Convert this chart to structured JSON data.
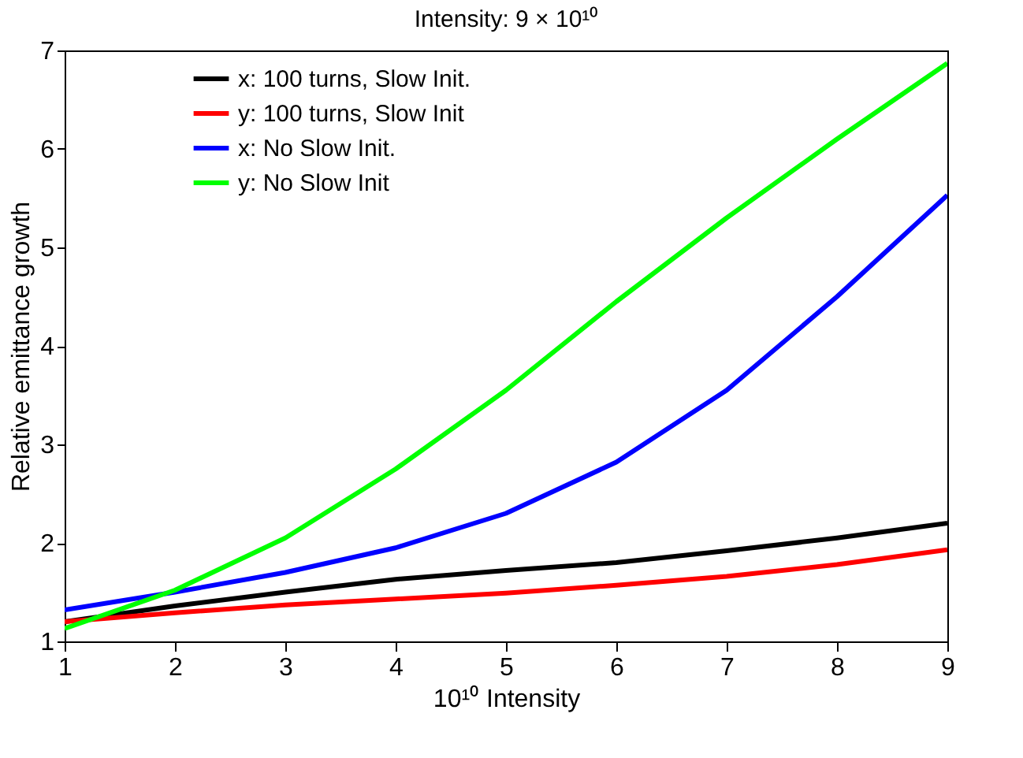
{
  "chart_data": {
    "type": "line",
    "title": "Intensity: 9 × 10¹⁰",
    "xlabel": "10¹⁰  Intensity",
    "ylabel": "Relative emittance growth",
    "x": [
      1,
      2,
      3,
      4,
      5,
      6,
      7,
      8,
      9
    ],
    "series": [
      {
        "name": "x: 100 turns, Slow Init.",
        "color": "#000000",
        "values": [
          1.2,
          1.36,
          1.5,
          1.63,
          1.72,
          1.8,
          1.92,
          2.05,
          2.2
        ]
      },
      {
        "name": "y:  100 turns, Slow Init",
        "color": "#ff0000",
        "values": [
          1.2,
          1.29,
          1.37,
          1.43,
          1.49,
          1.57,
          1.66,
          1.78,
          1.93
        ]
      },
      {
        "name": "x: No Slow Init.",
        "color": "#0000ff",
        "values": [
          1.32,
          1.5,
          1.7,
          1.95,
          2.3,
          2.82,
          3.55,
          4.5,
          5.53
        ]
      },
      {
        "name": "y: No Slow Init",
        "color": "#00ff00",
        "values": [
          1.13,
          1.52,
          2.05,
          2.75,
          3.55,
          4.45,
          5.3,
          6.1,
          6.87
        ]
      }
    ],
    "xlim": [
      1,
      9
    ],
    "xticks": [
      1,
      2,
      3,
      4,
      5,
      6,
      7,
      8,
      9
    ],
    "ylim": [
      1,
      7
    ],
    "yticks": [
      1,
      2,
      3,
      4,
      5,
      6,
      7
    ],
    "grid": false,
    "legend": "top",
    "marker": "none",
    "line_style": "solid"
  }
}
